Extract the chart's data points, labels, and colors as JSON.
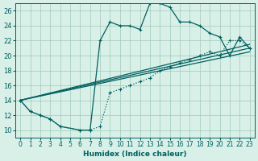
{
  "bg_color": "#d8f0e8",
  "grid_color": "#a0c8b8",
  "line_color": "#006060",
  "xlabel": "Humidex (Indice chaleur)",
  "xlim": [
    -0.5,
    23.5
  ],
  "ylim": [
    9,
    27
  ],
  "xticks": [
    0,
    1,
    2,
    3,
    4,
    5,
    6,
    7,
    8,
    9,
    10,
    11,
    12,
    13,
    14,
    15,
    16,
    17,
    18,
    19,
    20,
    21,
    22,
    23
  ],
  "yticks": [
    10,
    12,
    14,
    16,
    18,
    20,
    22,
    24,
    26
  ],
  "curve1_x": [
    0,
    1,
    2,
    3,
    4,
    6,
    7,
    8,
    9,
    10,
    11,
    12,
    13,
    14,
    15,
    16,
    17,
    18,
    19,
    20,
    21,
    22,
    23
  ],
  "curve1_y": [
    14,
    12.5,
    12,
    11.5,
    10.5,
    10,
    10,
    22,
    24.5,
    24,
    24,
    23.5,
    27,
    27,
    26.5,
    24.5,
    24.5,
    24,
    23,
    22.5,
    20,
    22.5,
    21
  ],
  "curve2_x": [
    0,
    1,
    2,
    3,
    4,
    6,
    7,
    8,
    9,
    10,
    11,
    12,
    13,
    14,
    15,
    16,
    17,
    18,
    19,
    20,
    21,
    22,
    23
  ],
  "curve2_y": [
    14,
    12.5,
    12,
    11.5,
    10.5,
    10,
    10,
    10.5,
    15,
    15.5,
    16,
    16.5,
    17,
    18,
    18.5,
    19,
    19.5,
    20,
    20.5,
    20,
    22,
    22,
    21
  ],
  "line1_x": [
    0,
    23
  ],
  "line1_y": [
    14,
    21.5
  ],
  "line2_x": [
    0,
    23
  ],
  "line2_y": [
    14,
    21.0
  ],
  "line3_x": [
    0,
    23
  ],
  "line3_y": [
    14,
    20.5
  ]
}
